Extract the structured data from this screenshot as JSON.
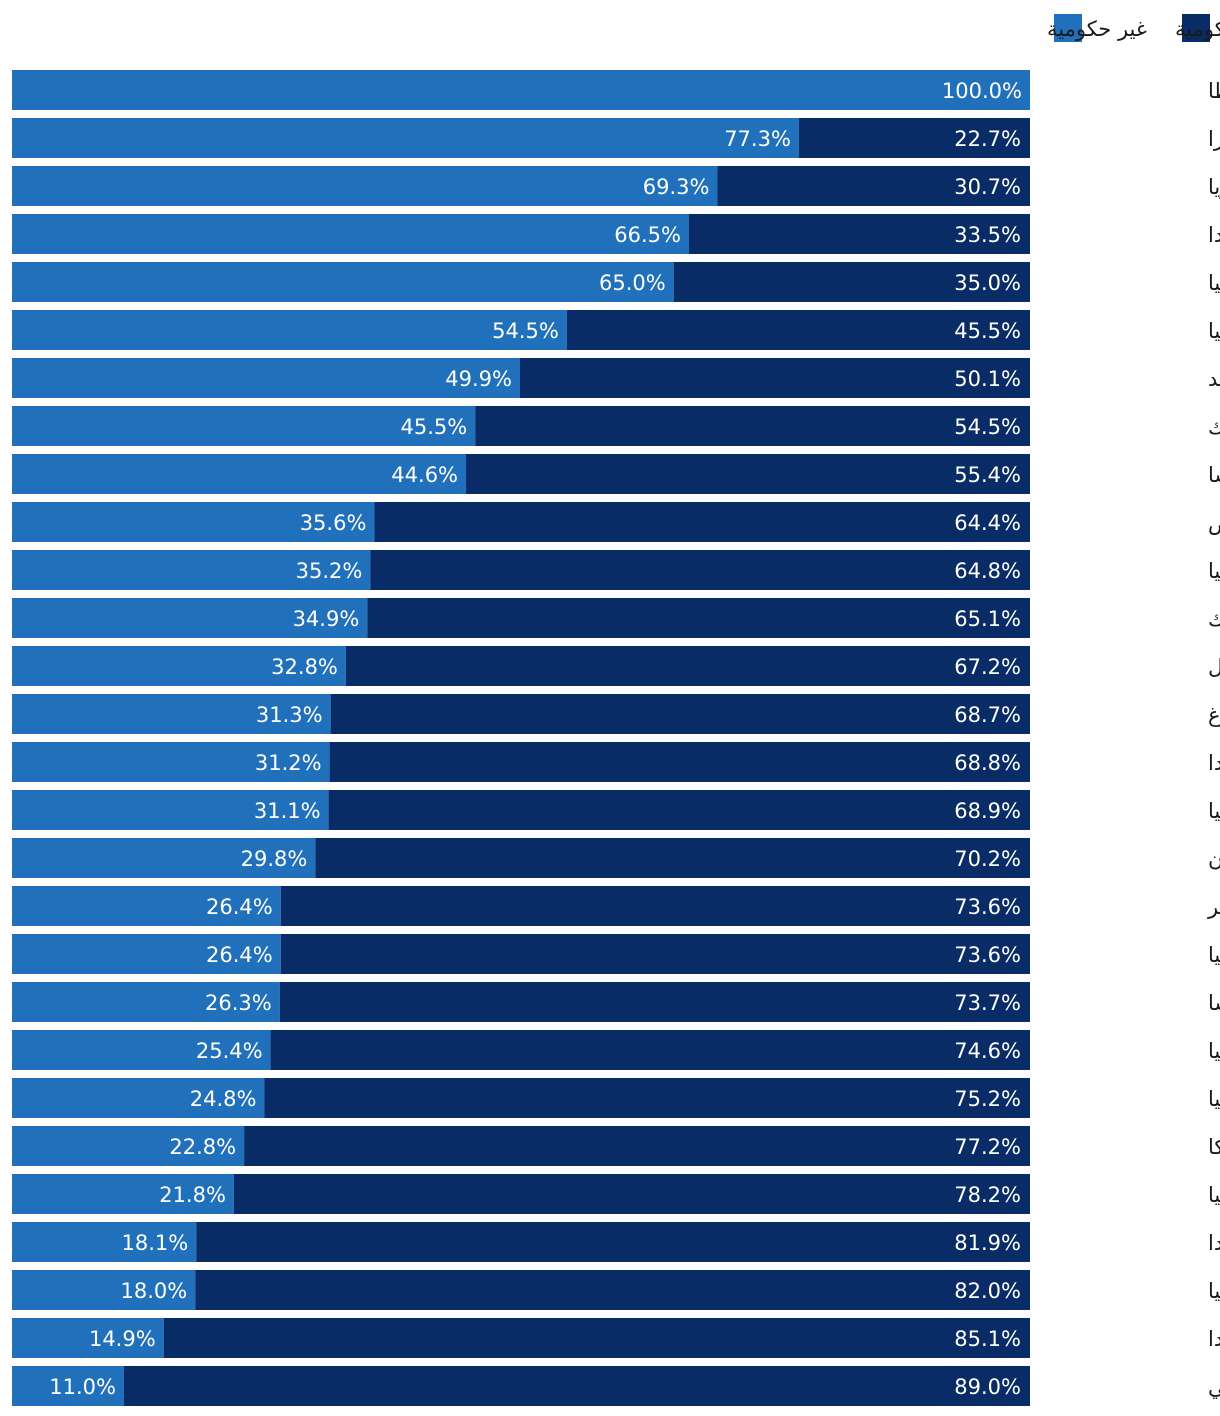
{
  "colors": {
    "government": "#0a2c66",
    "non_government": "#2170bb",
    "label_on_bar": "#ffffff",
    "country_text": "#1a1a1a"
  },
  "chart_data": {
    "type": "bar",
    "orientation": "horizontal",
    "stacked": true,
    "percent_stacked": true,
    "direction": "rtl",
    "legend_position": "top-right",
    "xlim": [
      0,
      100
    ],
    "categories": [
      "مالطا",
      "سويسرا",
      "بلغاريا",
      "هولندا",
      "ألمانيا",
      "إيطاليا",
      "السويد",
      "الدانمارك",
      "فرنسا",
      "قبرص",
      "إستونيا",
      "جمهورية التشيك",
      "البرتغال",
      "لوكسمبورغ",
      "بولندا",
      "ليتوانيا",
      "اليونان",
      "المجر",
      "سلوفاكيا",
      "النمسا",
      "سلوفينيا",
      "إسبانيا",
      "بلجيكا",
      "كرواتيا",
      "فنلندا",
      "رومانيا",
      "إيرلندا",
      "البرلمان الأوروبي"
    ],
    "series": [
      {
        "name": "حكومية",
        "values": [
          0,
          22.7,
          30.7,
          33.5,
          35.0,
          45.5,
          50.1,
          54.5,
          55.4,
          64.4,
          64.8,
          65.1,
          67.2,
          68.7,
          68.8,
          68.9,
          70.2,
          73.6,
          73.6,
          73.7,
          74.6,
          75.2,
          77.2,
          78.2,
          81.9,
          82.0,
          85.1,
          89.0
        ],
        "labels": [
          "",
          "22.7%",
          "30.7%",
          "33.5%",
          "35.0%",
          "45.5%",
          "50.1%",
          "54.5%",
          "55.4%",
          "64.4%",
          "64.8%",
          "65.1%",
          "67.2%",
          "68.7%",
          "68.8%",
          "68.9%",
          "70.2%",
          "73.6%",
          "73.6%",
          "73.7%",
          "74.6%",
          "75.2%",
          "77.2%",
          "78.2%",
          "81.9%",
          "82.0%",
          "85.1%",
          "89.0%"
        ]
      },
      {
        "name": "غير حكومية",
        "values": [
          100.0,
          77.3,
          69.3,
          66.5,
          65.0,
          54.5,
          49.9,
          45.5,
          44.6,
          35.6,
          35.2,
          34.9,
          32.8,
          31.3,
          31.2,
          31.1,
          29.8,
          26.4,
          26.4,
          26.3,
          25.4,
          24.8,
          22.8,
          21.8,
          18.1,
          18.0,
          14.9,
          11.0
        ],
        "labels": [
          "100.0%",
          "77.3%",
          "69.3%",
          "66.5%",
          "65.0%",
          "54.5%",
          "49.9%",
          "45.5%",
          "44.6%",
          "35.6%",
          "35.2%",
          "34.9%",
          "32.8%",
          "31.3%",
          "31.2%",
          "31.1%",
          "29.8%",
          "26.4%",
          "26.4%",
          "26.3%",
          "25.4%",
          "24.8%",
          "22.8%",
          "21.8%",
          "18.1%",
          "18.0%",
          "14.9%",
          "11.0%"
        ]
      }
    ]
  }
}
